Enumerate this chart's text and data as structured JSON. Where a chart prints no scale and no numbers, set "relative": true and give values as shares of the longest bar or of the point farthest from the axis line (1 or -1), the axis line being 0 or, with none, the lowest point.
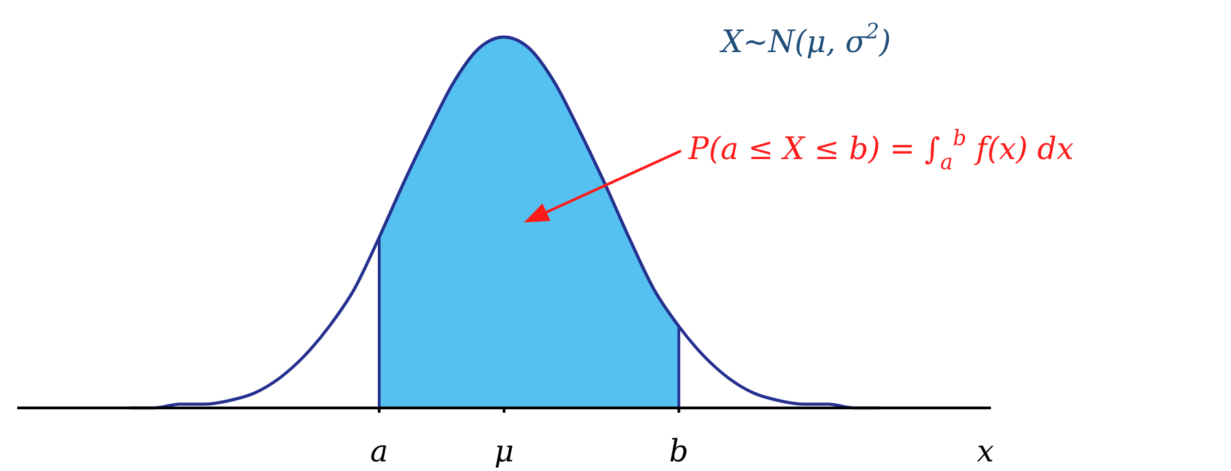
{
  "chart_data": {
    "type": "line",
    "relative": true,
    "xlabel": "x",
    "categories": [
      null,
      null,
      null,
      null,
      null,
      null,
      null,
      null,
      null,
      null,
      null,
      null,
      null,
      "a",
      null,
      null,
      null,
      null,
      "μ",
      null,
      null,
      null,
      null,
      null,
      null,
      "b",
      null,
      null,
      null,
      null,
      null,
      null,
      null,
      null,
      null,
      null,
      null
    ],
    "series": [
      {
        "type": "area",
        "color": "#55c1f0",
        "values": [
          null,
          null,
          null,
          null,
          null,
          null,
          null,
          null,
          null,
          null,
          null,
          null,
          null,
          0.46,
          0.61,
          0.75,
          0.88,
          0.97,
          1,
          0.97,
          0.88,
          0.75,
          0.61,
          0.46,
          0.32,
          0.22,
          null,
          null,
          null,
          null,
          null,
          null,
          null,
          null,
          null,
          null,
          null
        ]
      },
      {
        "color": "#25308f",
        "values": [
          null,
          null,
          null,
          0,
          0,
          0.01,
          0.01,
          0.02,
          0.04,
          0.08,
          0.14,
          0.22,
          0.32,
          0.46,
          0.61,
          0.75,
          0.88,
          0.97,
          1,
          0.97,
          0.88,
          0.75,
          0.61,
          0.46,
          0.32,
          0.22,
          0.14,
          0.08,
          0.04,
          0.02,
          0.01,
          0.01,
          0,
          0,
          null,
          null,
          null
        ]
      }
    ],
    "annotations": [
      "X∼N(μ, σ$^{2}$)",
      "P(a ≤ X ≤ b) = ∫$_{a}$$^{b}$ f(x) dx"
    ]
  }
}
